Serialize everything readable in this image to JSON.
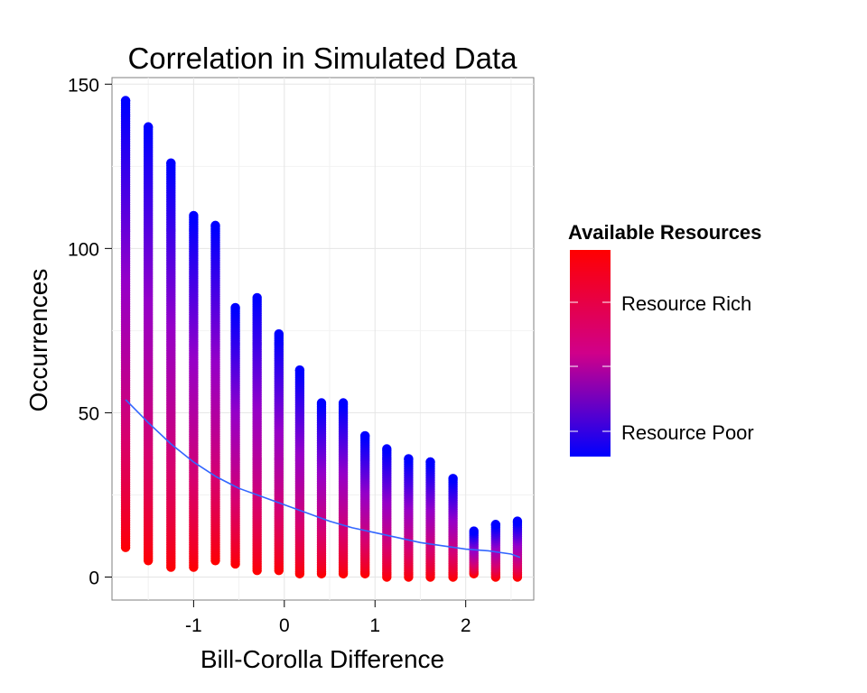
{
  "chart_data": {
    "type": "scatter",
    "title": "Correlation in Simulated Data",
    "xlabel": "Bill-Corolla Difference",
    "ylabel": "Occurrences",
    "xlim": [
      -1.9,
      2.75
    ],
    "ylim": [
      -7,
      152
    ],
    "x_ticks": [
      -1,
      0,
      1,
      2
    ],
    "x_tick_labels": [
      "-1",
      "0",
      "1",
      "2"
    ],
    "y_ticks": [
      0,
      50,
      100,
      150
    ],
    "y_tick_labels": [
      "0",
      "50",
      "100",
      "150"
    ],
    "grid": true,
    "legend": {
      "title": "Available Resources",
      "position": "right",
      "labels": [
        "Resource Rich",
        "Resource Poor"
      ],
      "gradient_colors": [
        "#ff0000",
        "#0000ff"
      ]
    },
    "columns": [
      {
        "x": -1.75,
        "min": 9,
        "max": 145
      },
      {
        "x": -1.5,
        "min": 5,
        "max": 137
      },
      {
        "x": -1.25,
        "min": 3,
        "max": 126
      },
      {
        "x": -1.0,
        "min": 3,
        "max": 110
      },
      {
        "x": -0.76,
        "min": 5,
        "max": 107
      },
      {
        "x": -0.54,
        "min": 4,
        "max": 82
      },
      {
        "x": -0.3,
        "min": 2,
        "max": 85
      },
      {
        "x": -0.06,
        "min": 2,
        "max": 74
      },
      {
        "x": 0.17,
        "min": 1,
        "max": 63
      },
      {
        "x": 0.41,
        "min": 1,
        "max": 53
      },
      {
        "x": 0.65,
        "min": 1,
        "max": 53
      },
      {
        "x": 0.89,
        "min": 1,
        "max": 43
      },
      {
        "x": 1.13,
        "min": 0,
        "max": 39
      },
      {
        "x": 1.37,
        "min": 0,
        "max": 36
      },
      {
        "x": 1.61,
        "min": 0,
        "max": 35
      },
      {
        "x": 1.86,
        "min": 0,
        "max": 30
      },
      {
        "x": 2.09,
        "min": 1,
        "max": 14
      },
      {
        "x": 2.33,
        "min": 0,
        "max": 16
      },
      {
        "x": 2.57,
        "min": 0,
        "max": 17
      }
    ],
    "trend_line": {
      "color": "#3366ff",
      "points": [
        [
          -1.75,
          54
        ],
        [
          -1.5,
          47
        ],
        [
          -1.25,
          40.5
        ],
        [
          -1.0,
          35
        ],
        [
          -0.75,
          30.5
        ],
        [
          -0.5,
          27
        ],
        [
          -0.25,
          24.5
        ],
        [
          0.0,
          22
        ],
        [
          0.25,
          19.5
        ],
        [
          0.5,
          17
        ],
        [
          0.75,
          15
        ],
        [
          1.0,
          13.5
        ],
        [
          1.25,
          12
        ],
        [
          1.5,
          10.5
        ],
        [
          1.75,
          9.5
        ],
        [
          2.0,
          8.5
        ],
        [
          2.25,
          8
        ],
        [
          2.5,
          7
        ],
        [
          2.6,
          6
        ]
      ]
    }
  }
}
